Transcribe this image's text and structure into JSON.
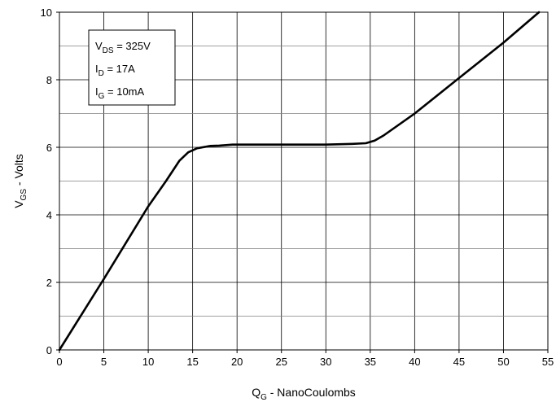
{
  "chart_data": {
    "type": "line",
    "xlabel": {
      "main": "Q",
      "sub": "G",
      "rest": " - NanoCoulombs"
    },
    "ylabel": {
      "main": "V",
      "sub": "GS",
      "rest": " - Volts"
    },
    "xlim": [
      0,
      55
    ],
    "ylim": [
      0,
      10
    ],
    "xticks": [
      "0",
      "5",
      "10",
      "15",
      "20",
      "25",
      "30",
      "35",
      "40",
      "45",
      "50",
      "55"
    ],
    "yticks": [
      "0",
      "2",
      "4",
      "6",
      "8",
      "10"
    ],
    "grid": true,
    "conditions": [
      {
        "main": "V",
        "sub": "DS",
        "rest": " = 325V"
      },
      {
        "main": "I",
        "sub": "D",
        "rest": " = 17A"
      },
      {
        "main": "I",
        "sub": "G",
        "rest": " = 10mA"
      }
    ],
    "series": [
      {
        "x": [
          0,
          5,
          10,
          12,
          13.5,
          14.5,
          15.5,
          17,
          18,
          19.5,
          25,
          30,
          33,
          34.5,
          35.5,
          36.5,
          40,
          45,
          50,
          54
        ],
        "y": [
          0,
          2.1,
          4.25,
          5.0,
          5.6,
          5.85,
          5.97,
          6.04,
          6.05,
          6.08,
          6.08,
          6.08,
          6.1,
          6.12,
          6.2,
          6.35,
          7.0,
          8.05,
          9.1,
          10.0
        ]
      }
    ]
  }
}
